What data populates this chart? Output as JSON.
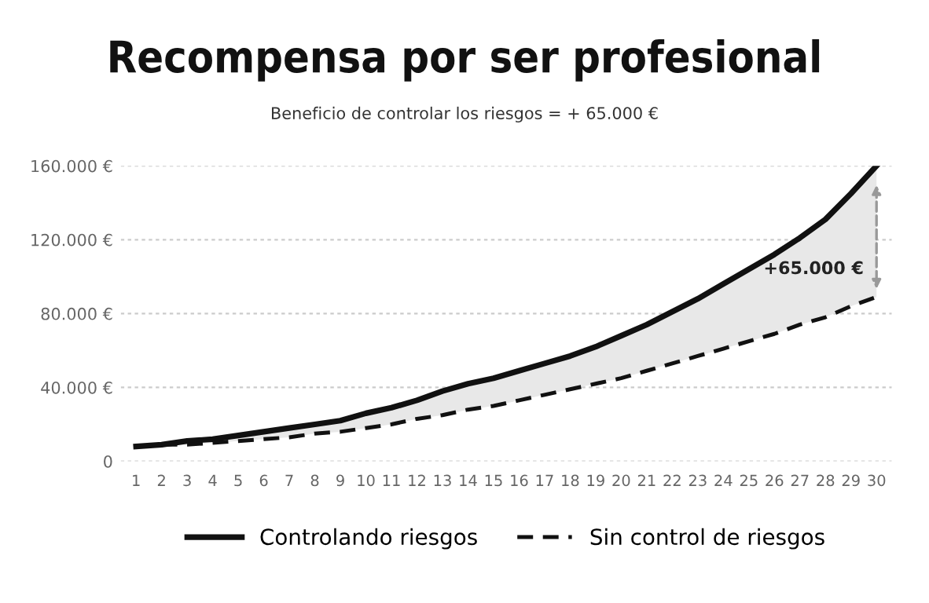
{
  "chart_data": {
    "type": "line",
    "title": "Recompensa por ser profesional",
    "subtitle": "Beneficio de controlar los riesgos = + 65.000 €",
    "categories": [
      "1",
      "2",
      "3",
      "4",
      "5",
      "6",
      "7",
      "8",
      "9",
      "10",
      "11",
      "12",
      "13",
      "14",
      "15",
      "16",
      "17",
      "18",
      "19",
      "20",
      "21",
      "22",
      "23",
      "24",
      "25",
      "26",
      "27",
      "28",
      "29",
      "30"
    ],
    "series": [
      {
        "name": "Controlando riesgos",
        "color": "#111111",
        "line_style": "solid",
        "values": [
          8000,
          9000,
          11000,
          12000,
          14000,
          16000,
          18000,
          20000,
          22000,
          26000,
          29000,
          33000,
          38000,
          42000,
          45000,
          49000,
          53000,
          57000,
          62000,
          68000,
          74000,
          81000,
          88000,
          96000,
          104000,
          112000,
          121000,
          131000,
          145000,
          160000
        ],
        "lower": [
          8000,
          9000,
          9000,
          10000,
          11000,
          12000,
          13000,
          15000,
          16000,
          18000,
          20000,
          23000,
          25000,
          28000,
          30000,
          33000,
          36000,
          39000,
          42000,
          45000,
          49000,
          53000,
          57000,
          61000,
          65000,
          69000,
          74000,
          78000,
          84000,
          89000
        ],
        "upper": [
          8000,
          9000,
          11000,
          12000,
          14000,
          16000,
          18000,
          20000,
          22000,
          26000,
          29000,
          33000,
          38000,
          42000,
          45000,
          49000,
          53000,
          57000,
          62000,
          68000,
          74000,
          81000,
          88000,
          96000,
          104000,
          112000,
          121000,
          131000,
          145000,
          160000
        ]
      },
      {
        "name": "Sin control de riesgos",
        "color": "#111111",
        "line_style": "dashed",
        "values": [
          8000,
          9000,
          9000,
          10000,
          11000,
          12000,
          13000,
          15000,
          16000,
          18000,
          20000,
          23000,
          25000,
          28000,
          30000,
          33000,
          36000,
          39000,
          42000,
          45000,
          49000,
          53000,
          57000,
          61000,
          65000,
          69000,
          74000,
          78000,
          84000,
          89000
        ]
      }
    ],
    "annotations": [
      {
        "text": "+65.000 €",
        "x": "30",
        "y": 104000
      }
    ],
    "ylim": [
      0,
      160000
    ],
    "yticks": [
      0,
      {
        "value": 40000,
        "label": "40.000 €"
      },
      {
        "value": 80000,
        "label": "80.000 €"
      },
      {
        "value": 120000,
        "label": "120.000 €"
      },
      {
        "value": 160000,
        "label": "160.000 €"
      }
    ],
    "grid": "y",
    "legend": "bottom",
    "marker": "none"
  }
}
